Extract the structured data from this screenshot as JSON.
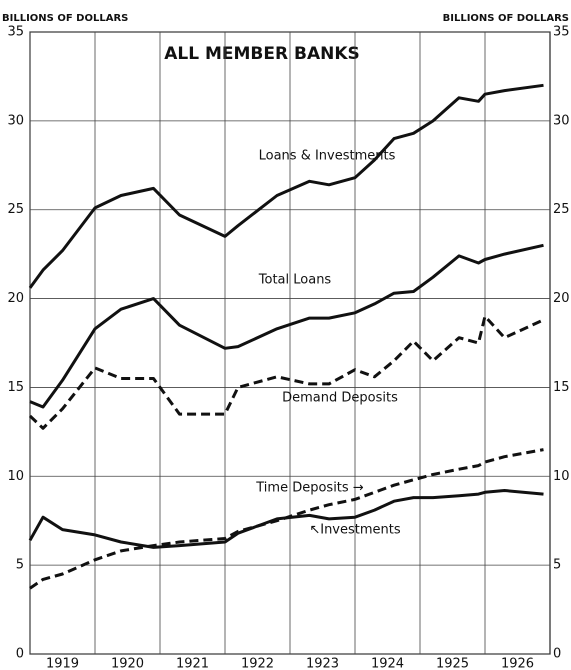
{
  "chart_data": {
    "type": "line",
    "title": "ALL MEMBER BANKS",
    "y_label_left": "BILLIONS OF DOLLARS",
    "y_label_right": "BILLIONS OF DOLLARS",
    "x": [
      1919.0,
      1919.2,
      1919.5,
      1920.0,
      1920.4,
      1920.9,
      1921.3,
      1922.0,
      1922.2,
      1922.8,
      1923.3,
      1923.6,
      1924.0,
      1924.3,
      1924.6,
      1924.9,
      1925.2,
      1925.6,
      1925.9,
      1926.0,
      1926.3,
      1926.9
    ],
    "series": [
      {
        "name": "Loans & Investments",
        "color": "#111",
        "dashed": false,
        "values": [
          20.6,
          21.6,
          22.7,
          25.1,
          25.8,
          26.2,
          24.7,
          23.5,
          24.1,
          25.8,
          26.6,
          26.4,
          26.8,
          27.8,
          29.0,
          29.3,
          30.0,
          31.3,
          31.1,
          31.5,
          31.7,
          32.0
        ]
      },
      {
        "name": "Total Loans",
        "color": "#111",
        "dashed": false,
        "values": [
          14.2,
          13.9,
          15.4,
          18.3,
          19.4,
          20.0,
          18.5,
          17.2,
          17.3,
          18.3,
          18.9,
          18.9,
          19.2,
          19.7,
          20.3,
          20.4,
          21.2,
          22.4,
          22.0,
          22.2,
          22.5,
          23.0
        ]
      },
      {
        "name": "Demand Deposits",
        "color": "#111",
        "dashed": true,
        "values": [
          13.4,
          12.7,
          13.8,
          16.1,
          15.5,
          15.5,
          13.5,
          13.5,
          15.0,
          15.6,
          15.2,
          15.2,
          16.0,
          15.6,
          16.5,
          17.6,
          16.5,
          17.8,
          17.5,
          19.0,
          17.8,
          18.8
        ]
      },
      {
        "name": "Time Deposits →",
        "color": "#111",
        "dashed": true,
        "values": [
          3.7,
          4.2,
          4.5,
          5.3,
          5.8,
          6.1,
          6.3,
          6.5,
          6.9,
          7.5,
          8.1,
          8.4,
          8.7,
          9.1,
          9.5,
          9.8,
          10.1,
          10.4,
          10.6,
          10.8,
          11.1,
          11.5
        ]
      },
      {
        "name": "↖Investments",
        "color": "#111",
        "dashed": false,
        "values": [
          6.4,
          7.7,
          7.0,
          6.7,
          6.3,
          6.0,
          6.1,
          6.3,
          6.8,
          7.6,
          7.8,
          7.6,
          7.7,
          8.1,
          8.6,
          8.8,
          8.8,
          8.9,
          9.0,
          9.1,
          9.2,
          9.0
        ]
      }
    ],
    "xlim": [
      1919,
      1927
    ],
    "xticks": [
      1919,
      1920,
      1921,
      1922,
      1923,
      1924,
      1925,
      1926
    ],
    "ylim": [
      0,
      35
    ],
    "yticks": [
      0,
      5,
      10,
      15,
      20,
      25,
      30,
      35
    ],
    "y2lim": [
      0,
      35
    ],
    "y2ticks": [
      0,
      5,
      10,
      15,
      20,
      25,
      30,
      35
    ],
    "grid": true
  }
}
